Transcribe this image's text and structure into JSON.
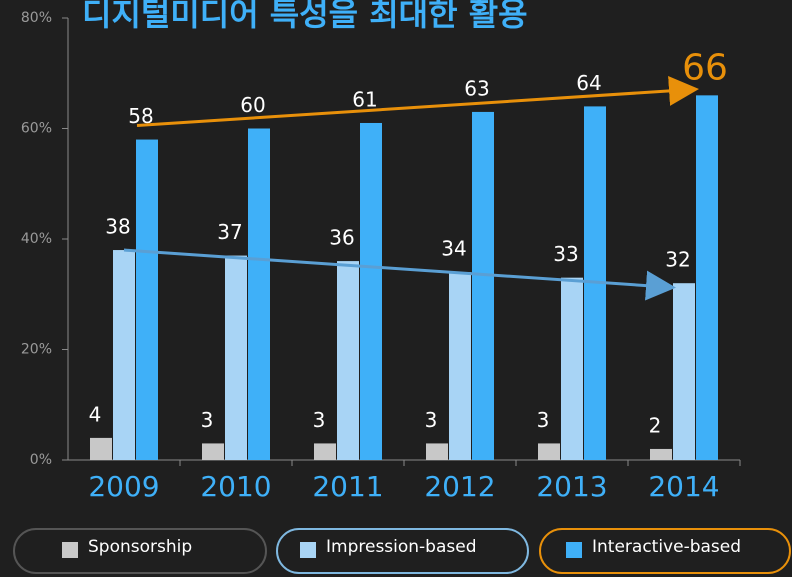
{
  "chart_data": {
    "type": "bar",
    "title": "디지털미디어 특성을 최대한 활용",
    "categories": [
      "2009",
      "2010",
      "2011",
      "2012",
      "2013",
      "2014"
    ],
    "series": [
      {
        "name": "Sponsorship",
        "color": "#c8c8c8",
        "values": [
          4,
          3,
          3,
          3,
          3,
          2
        ]
      },
      {
        "name": "Impression-based",
        "color": "#a8d4f5",
        "values": [
          38,
          37,
          36,
          34,
          33,
          32
        ]
      },
      {
        "name": "Interactive-based",
        "color": "#3fb0f8",
        "values": [
          58,
          60,
          61,
          63,
          64,
          66
        ]
      }
    ],
    "ylim": [
      0,
      80
    ],
    "yticks": [
      {
        "value": 0,
        "label": "0%"
      },
      {
        "value": 20,
        "label": "20%"
      },
      {
        "value": 40,
        "label": "40%"
      },
      {
        "value": 60,
        "label": "60%"
      },
      {
        "value": 80,
        "label": "80%"
      }
    ]
  }
}
